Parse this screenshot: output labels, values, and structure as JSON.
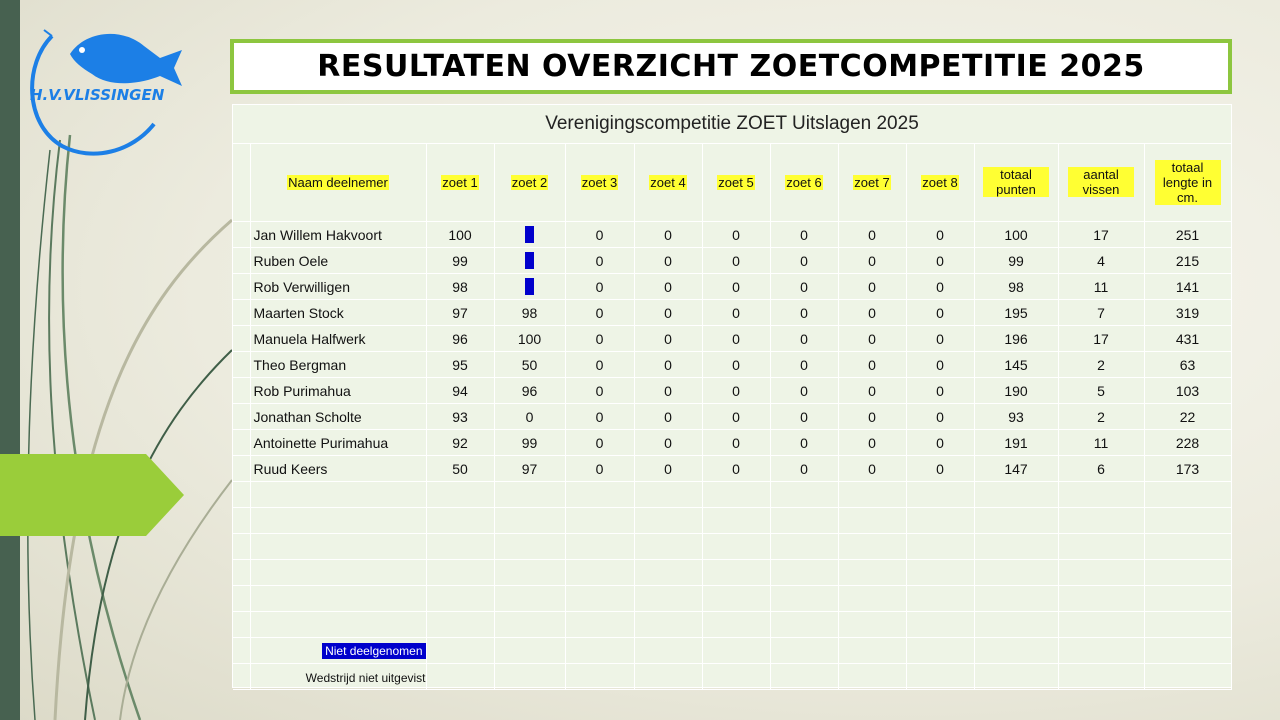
{
  "logo": {
    "text": "H.V.VLISSINGEN",
    "brand_color": "#1c7fe6"
  },
  "title": "RESULTATEN OVERZICHT ZOETCOMPETITIE 2025",
  "table": {
    "caption": "Verenigingscompetitie ZOET Uitslagen 2025",
    "headers": [
      "Naam deelnemer",
      "zoet 1",
      "zoet 2",
      "zoet 3",
      "zoet 4",
      "zoet 5",
      "zoet 6",
      "zoet 7",
      "zoet 8",
      "totaal punten",
      "aantal vissen",
      "totaal lengte in cm."
    ],
    "rows": [
      {
        "name": "Jan Willem Hakvoort",
        "z1": "100",
        "z2": "",
        "z2_absent": true,
        "z3": "0",
        "z4": "0",
        "z5": "0",
        "z6": "0",
        "z7": "0",
        "z8": "0",
        "totaal": "100",
        "vissen": "17",
        "lengte": "251"
      },
      {
        "name": "Ruben Oele",
        "z1": "99",
        "z2": "",
        "z2_absent": true,
        "z3": "0",
        "z4": "0",
        "z5": "0",
        "z6": "0",
        "z7": "0",
        "z8": "0",
        "totaal": "99",
        "vissen": "4",
        "lengte": "215"
      },
      {
        "name": "Rob Verwilligen",
        "z1": "98",
        "z2": "",
        "z2_absent": true,
        "z3": "0",
        "z4": "0",
        "z5": "0",
        "z6": "0",
        "z7": "0",
        "z8": "0",
        "totaal": "98",
        "vissen": "11",
        "lengte": "141"
      },
      {
        "name": "Maarten Stock",
        "z1": "97",
        "z2": "98",
        "z2_absent": false,
        "z3": "0",
        "z4": "0",
        "z5": "0",
        "z6": "0",
        "z7": "0",
        "z8": "0",
        "totaal": "195",
        "vissen": "7",
        "lengte": "319"
      },
      {
        "name": "Manuela Halfwerk",
        "z1": "96",
        "z2": "100",
        "z2_absent": false,
        "z3": "0",
        "z4": "0",
        "z5": "0",
        "z6": "0",
        "z7": "0",
        "z8": "0",
        "totaal": "196",
        "vissen": "17",
        "lengte": "431"
      },
      {
        "name": "Theo Bergman",
        "z1": "95",
        "z2": "50",
        "z2_absent": false,
        "z3": "0",
        "z4": "0",
        "z5": "0",
        "z6": "0",
        "z7": "0",
        "z8": "0",
        "totaal": "145",
        "vissen": "2",
        "lengte": "63"
      },
      {
        "name": "Rob Purimahua",
        "z1": "94",
        "z2": "96",
        "z2_absent": false,
        "z3": "0",
        "z4": "0",
        "z5": "0",
        "z6": "0",
        "z7": "0",
        "z8": "0",
        "totaal": "190",
        "vissen": "5",
        "lengte": "103"
      },
      {
        "name": "Jonathan Scholte",
        "z1": "93",
        "z2": "0",
        "z2_absent": false,
        "z3": "0",
        "z4": "0",
        "z5": "0",
        "z6": "0",
        "z7": "0",
        "z8": "0",
        "totaal": "93",
        "vissen": "2",
        "lengte": "22"
      },
      {
        "name": "Antoinette Purimahua",
        "z1": "92",
        "z2": "99",
        "z2_absent": false,
        "z3": "0",
        "z4": "0",
        "z5": "0",
        "z6": "0",
        "z7": "0",
        "z8": "0",
        "totaal": "191",
        "vissen": "11",
        "lengte": "228"
      },
      {
        "name": "Ruud Keers",
        "z1": "50",
        "z2": "97",
        "z2_absent": false,
        "z3": "0",
        "z4": "0",
        "z5": "0",
        "z6": "0",
        "z7": "0",
        "z8": "0",
        "totaal": "147",
        "vissen": "6",
        "lengte": "173"
      }
    ],
    "empty_rows": 6,
    "legend": {
      "absent_label": "Niet deelgenomen",
      "absent_color": "#0000cc",
      "not_fished_label": "Wedstrijd niet uitgevist"
    }
  },
  "colors": {
    "accent_green": "#8dc63f",
    "sidebar": "#476150",
    "header_highlight": "#ffff33"
  }
}
